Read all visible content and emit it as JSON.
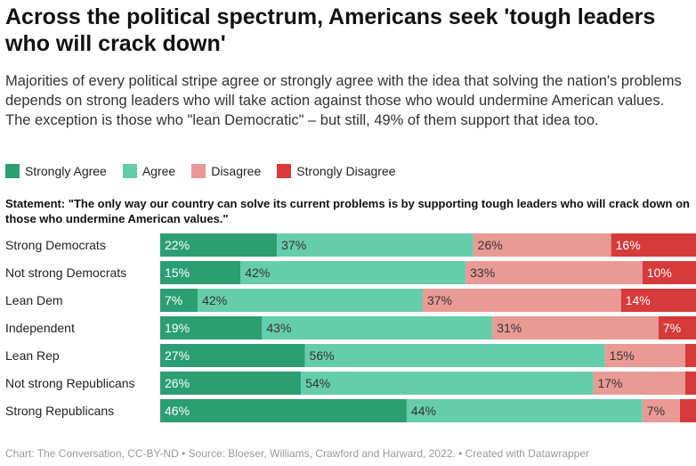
{
  "title": "Across the political spectrum, Americans seek 'tough leaders who will crack down'",
  "subtitle": "Majorities of every political stripe agree or strongly agree with the idea that solving the nation's problems depends on strong leaders who will take action against those who would undermine American values. The exception is those who \"lean Democratic\" – but still, 49% of them support that idea too.",
  "statement": "Statement: \"The only way our country can solve its current problems is by supporting tough leaders who will crack down on those who undermine American values.\"",
  "footer": "Chart: The Conversation, CC-BY-ND • Source: Bloeser, Williams, Crawford and Harward, 2022. • Created with Datawrapper",
  "chart_data": {
    "type": "bar",
    "orientation": "horizontal",
    "stacked": true,
    "categories": [
      "Strong Democrats",
      "Not strong Democrats",
      "Lean Dem",
      "Independent",
      "Lean Rep",
      "Not strong Republicans",
      "Strong Republicans"
    ],
    "series": [
      {
        "name": "Strongly Agree",
        "color": "#2b9e72",
        "values": [
          22,
          15,
          7,
          19,
          27,
          26,
          46
        ],
        "labels": [
          "22%",
          "15%",
          "7%",
          "19%",
          "27%",
          "26%",
          "46%"
        ]
      },
      {
        "name": "Agree",
        "color": "#66cdaa",
        "values": [
          37,
          42,
          42,
          43,
          56,
          54,
          44
        ],
        "labels": [
          "37%",
          "42%",
          "42%",
          "43%",
          "56%",
          "54%",
          "44%"
        ]
      },
      {
        "name": "Disagree",
        "color": "#ea9a95",
        "values": [
          26,
          33,
          37,
          31,
          15,
          17,
          7
        ],
        "labels": [
          "26%",
          "33%",
          "37%",
          "31%",
          "15%",
          "17%",
          "7%"
        ]
      },
      {
        "name": "Strongly Disagree",
        "color": "#d63a3a",
        "values": [
          16,
          10,
          14,
          7,
          2,
          2,
          3
        ],
        "labels": [
          "16%",
          "10%",
          "14%",
          "7%",
          "",
          "",
          ""
        ]
      }
    ],
    "legend_position": "top-left",
    "grid": false
  }
}
